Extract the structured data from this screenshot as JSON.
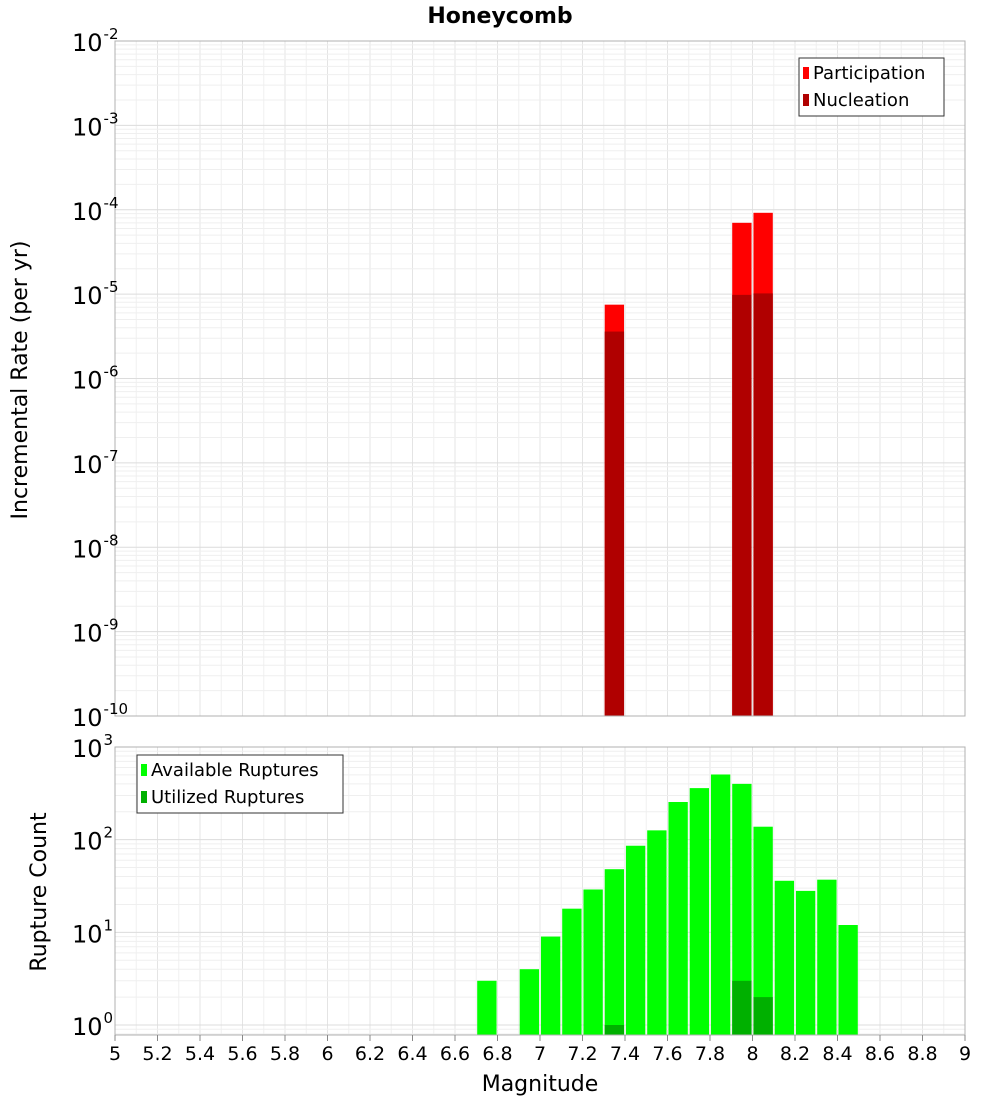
{
  "chart_data": {
    "title": "Honeycomb",
    "xlabel": "Magnitude",
    "xlim": [
      5,
      9
    ],
    "x_ticks": [
      "5",
      "5.2",
      "5.4",
      "5.6",
      "5.8",
      "6",
      "6.2",
      "6.4",
      "6.6",
      "6.8",
      "7",
      "7.2",
      "7.4",
      "7.6",
      "7.8",
      "8",
      "8.2",
      "8.4",
      "8.6",
      "8.8",
      "9"
    ],
    "panels": [
      {
        "type": "bar",
        "ylabel": "Incremental Rate (per yr)",
        "y_scale": "log",
        "ylim": [
          1e-10,
          0.01
        ],
        "y_tick_exponents": [
          "-10",
          "-9",
          "-8",
          "-7",
          "-6",
          "-5",
          "-4",
          "-3",
          "-2"
        ],
        "legend_position": "top-right",
        "series": [
          {
            "name": "Participation",
            "color": "#ff0000",
            "x": [
              7.35,
              7.95,
              8.05
            ],
            "values": [
              7.5e-06,
              7e-05,
              9.2e-05
            ]
          },
          {
            "name": "Nucleation",
            "color": "#b00000",
            "x": [
              7.35,
              7.95,
              8.05
            ],
            "values": [
              3.6e-06,
              9.8e-06,
              1.02e-05
            ]
          }
        ]
      },
      {
        "type": "bar",
        "ylabel": "Rupture Count",
        "y_scale": "log",
        "ylim": [
          0.78,
          1000
        ],
        "y_tick_exponents": [
          "0",
          "1",
          "2",
          "3"
        ],
        "legend_position": "top-left",
        "series": [
          {
            "name": "Available Ruptures",
            "color": "#00ff00",
            "x": [
              6.75,
              6.95,
              7.05,
              7.15,
              7.25,
              7.35,
              7.45,
              7.55,
              7.65,
              7.75,
              7.85,
              7.95,
              8.05,
              8.15,
              8.25,
              8.35,
              8.45
            ],
            "values": [
              3,
              4,
              9,
              18,
              29,
              48,
              86,
              126,
              255,
              360,
              505,
              400,
              138,
              36,
              28,
              37,
              12
            ]
          },
          {
            "name": "Utilized Ruptures",
            "color": "#00b000",
            "x": [
              7.35,
              7.95,
              8.05
            ],
            "values": [
              1,
              3,
              2
            ]
          }
        ]
      }
    ]
  }
}
